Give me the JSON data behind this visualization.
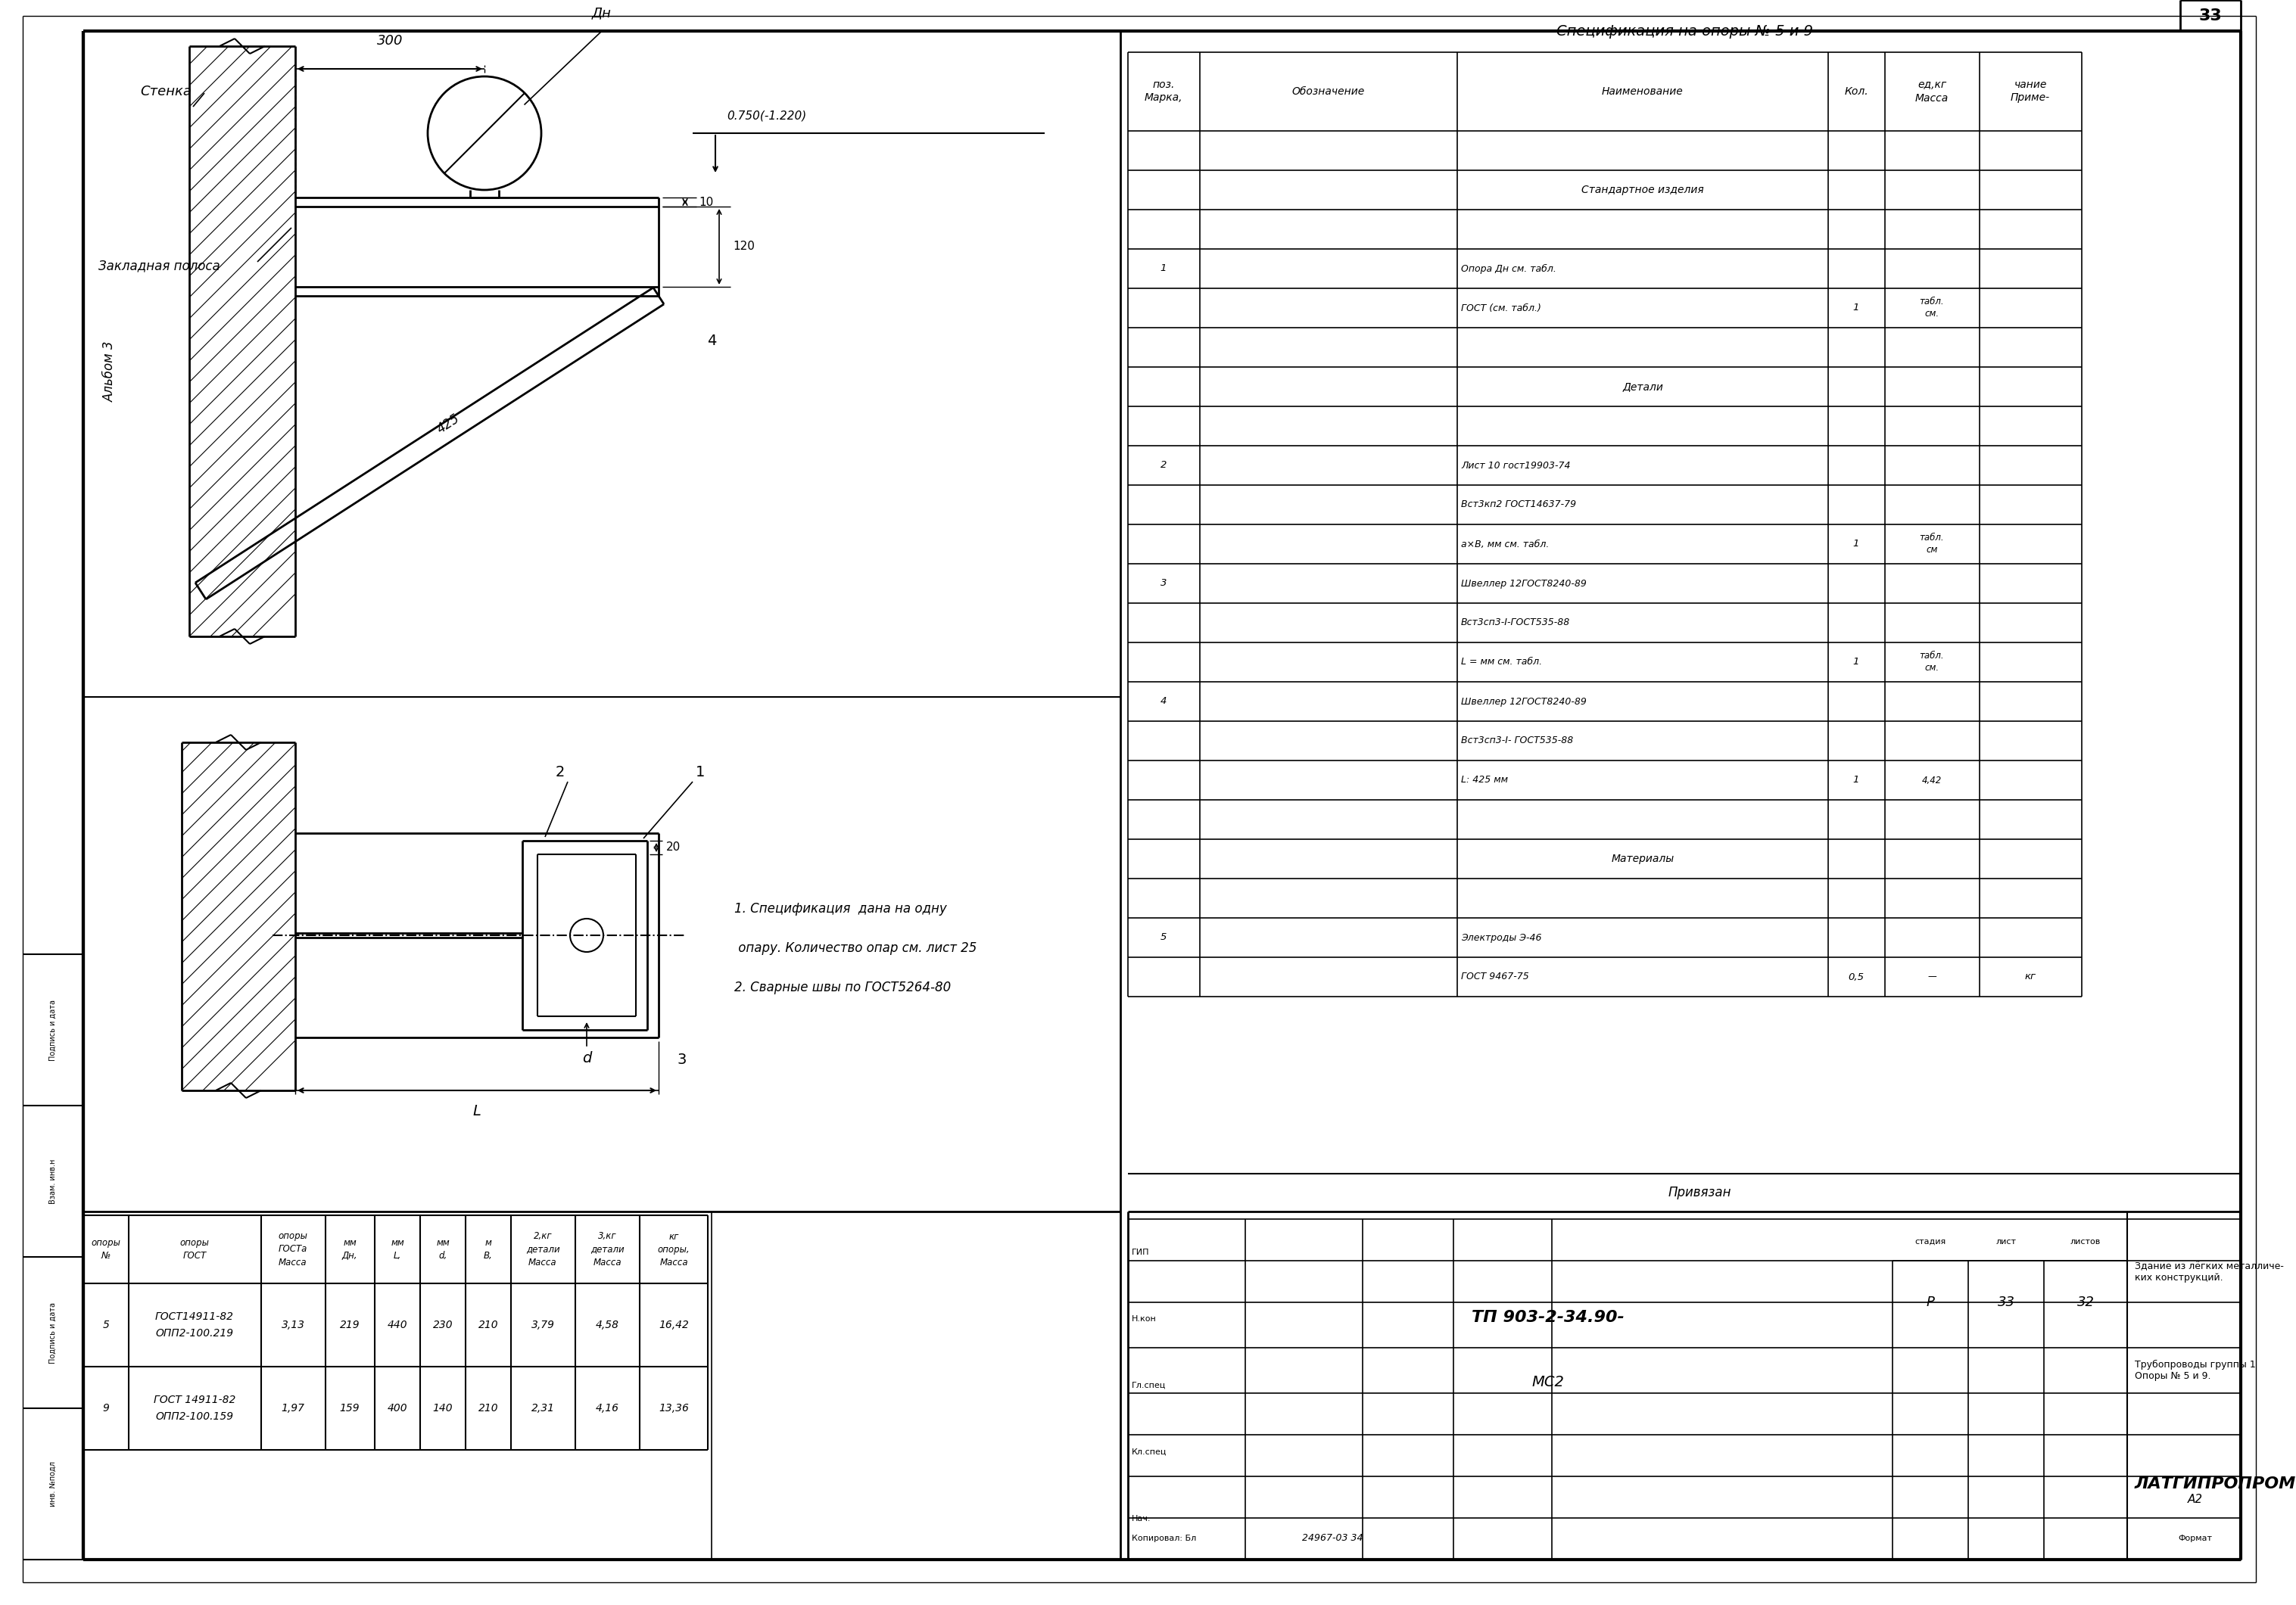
{
  "bg_color": "#ffffff",
  "line_color": "#000000",
  "title_spec": "Спецификация на опоры № 5 и 9",
  "spec_headers": [
    "Марка,\nпоз.",
    "Обозначение",
    "Наименование",
    "Кол.",
    "Масса\nед,кг",
    "Приме-\nчание"
  ],
  "spec_rows": [
    [
      "",
      "",
      "",
      "",
      "",
      ""
    ],
    [
      "",
      "",
      "Стандартное изделия",
      "",
      "",
      ""
    ],
    [
      "",
      "",
      "",
      "",
      "",
      ""
    ],
    [
      "1",
      "",
      "Опора Дн см. табл.",
      "",
      "",
      ""
    ],
    [
      "",
      "",
      "ГОСТ (см. табл.)",
      "1",
      "см.\nтабл.",
      ""
    ],
    [
      "",
      "",
      "",
      "",
      "",
      ""
    ],
    [
      "",
      "",
      "Детали",
      "",
      "",
      ""
    ],
    [
      "",
      "",
      "",
      "",
      "",
      ""
    ],
    [
      "2",
      "",
      "Лист 10 гост19903-74",
      "",
      "",
      ""
    ],
    [
      "",
      "",
      "Вст3кп2 ГОСТ14637-79",
      "",
      "",
      ""
    ],
    [
      "",
      "",
      "а×В, мм см. табл.",
      "1",
      "см\nтабл.",
      ""
    ],
    [
      "3",
      "",
      "Швеллер 12ГОСТ8240-89",
      "",
      "",
      ""
    ],
    [
      "",
      "",
      "Вст3сп3-I-ГОСТ535-88",
      "",
      "",
      ""
    ],
    [
      "",
      "",
      "L = мм см. табл.",
      "1",
      "см.\nтабл.",
      ""
    ],
    [
      "4",
      "",
      "Швеллер 12ГОСТ8240-89",
      "",
      "",
      ""
    ],
    [
      "",
      "",
      "Вст3сп3-I- ГОСТ535-88",
      "",
      "",
      ""
    ],
    [
      "",
      "",
      "L: 425 мм",
      "1",
      "4,42",
      ""
    ],
    [
      "",
      "",
      "",
      "",
      "",
      ""
    ],
    [
      "",
      "",
      "Материалы",
      "",
      "",
      ""
    ],
    [
      "",
      "",
      "",
      "",
      "",
      ""
    ],
    [
      "5",
      "",
      "Электроды Э-46",
      "",
      "",
      ""
    ],
    [
      "",
      "",
      "ГОСТ 9467-75",
      "0,5",
      "—",
      "кг"
    ]
  ],
  "table_headers": [
    "№\nопоры",
    "ГОСТ\nопоры",
    "Масса\nГОСТа\nопоры",
    "Дн,\nмм",
    "L,\nмм",
    "d,\nмм",
    "В,\nм",
    "Масса\nдетали\n2,кг",
    "Масса\nдетали\n3,кг",
    "Масса\nопоры,\nкг"
  ],
  "table_rows": [
    [
      "5",
      "ОПП2-100.219\nГОСТ14911-82",
      "3,13",
      "219",
      "440",
      "230",
      "210",
      "3,79",
      "4,58",
      "16,42"
    ],
    [
      "9",
      "ОПП2-100.159\nГОСТ 14911-82",
      "1,97",
      "159",
      "400",
      "140",
      "210",
      "2,31",
      "4,16",
      "13,36"
    ]
  ],
  "notes": [
    "1. Спецификация  дана на одну",
    " опару. Количество опар см. лист 25",
    "2. Сварные швы по ГОСТ5264-80"
  ],
  "title_block": {
    "drawing_num": "ТП 903-2-34.90-",
    "series": "МС2",
    "firm": "ЛАТГИПРОПРОМ",
    "sheet": "33",
    "total_sheets": "32",
    "stage": "Р",
    "invent": "24967-03 34",
    "format": "А2",
    "building": "Здание из лёгких металличе-\nких конструкций.",
    "section": "Трубопроводы группы 1\nОпоры № 5 и 9."
  },
  "album_label": "Альбом 3",
  "page_num": "33"
}
